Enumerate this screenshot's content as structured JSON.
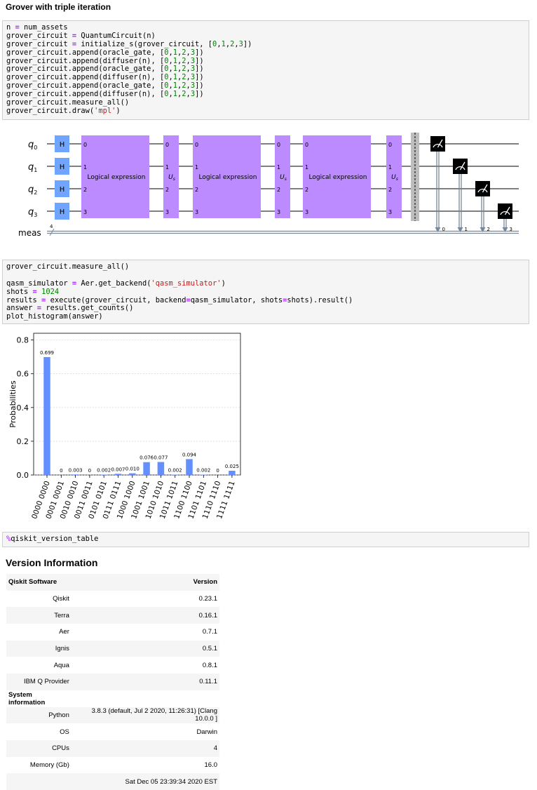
{
  "heading": "Grover with triple iteration",
  "cell1": {
    "lines": [
      [
        "n",
        " = ",
        "num_assets"
      ],
      [
        "grover_circuit",
        " = ",
        "QuantumCircuit(n)"
      ],
      [
        "grover_circuit",
        " = ",
        "initialize_s(grover_circuit, [",
        "0",
        ",",
        "1",
        ",",
        "2",
        ",",
        "3",
        "])"
      ],
      [
        "grover_circuit.append(oracle_gate, [",
        "0",
        ",",
        "1",
        ",",
        "2",
        ",",
        "3",
        "])"
      ],
      [
        "grover_circuit.append(diffuser(n), [",
        "0",
        ",",
        "1",
        ",",
        "2",
        ",",
        "3",
        "])"
      ],
      [
        "grover_circuit.append(oracle_gate, [",
        "0",
        ",",
        "1",
        ",",
        "2",
        ",",
        "3",
        "])"
      ],
      [
        "grover_circuit.append(diffuser(n), [",
        "0",
        ",",
        "1",
        ",",
        "2",
        ",",
        "3",
        "])"
      ],
      [
        "grover_circuit.append(oracle_gate, [",
        "0",
        ",",
        "1",
        ",",
        "2",
        ",",
        "3",
        "])"
      ],
      [
        "grover_circuit.append(diffuser(n), [",
        "0",
        ",",
        "1",
        ",",
        "2",
        ",",
        "3",
        "])"
      ],
      [
        "grover_circuit.measure_all()"
      ],
      [
        "grover_circuit.draw(",
        "'mpl'",
        ")"
      ]
    ]
  },
  "circuit": {
    "qubits": [
      "q",
      "q",
      "q",
      "q"
    ],
    "qubit_indices": [
      "0",
      "1",
      "2",
      "3"
    ],
    "meas_label": "meas",
    "meas_width": "4",
    "gate_h": "H",
    "oracle_label": "Logical expression",
    "diffuser_label": "U",
    "diffuser_sub": "s",
    "wire_numbers": [
      "0",
      "1",
      "2",
      "3"
    ],
    "classical_bits": [
      "0",
      "1",
      "2",
      "3"
    ],
    "colors": {
      "h_gate": "#6fa4ff",
      "oracle": "#bb8bff",
      "barrier": "#bdbdbd",
      "measure": "#000000",
      "classical": "#778899"
    }
  },
  "cell2": {
    "lines": [
      [
        "grover_circuit.measure_all()"
      ],
      [
        ""
      ],
      [
        "qasm_simulator",
        " = ",
        "Aer.get_backend(",
        "'qasm_simulator'",
        ")"
      ],
      [
        "shots",
        " = ",
        "1024"
      ],
      [
        "results",
        " = ",
        "execute(grover_circuit, backend",
        "=",
        "qasm_simulator, shots",
        "=",
        "shots).result()"
      ],
      [
        "answer",
        " = ",
        "results.get_counts()"
      ],
      [
        "plot_histogram(answer)"
      ]
    ]
  },
  "chart_data": {
    "type": "bar",
    "categories": [
      "0000 0000",
      "0001 0001",
      "0010 0010",
      "0011 0011",
      "0101 0101",
      "0111 0111",
      "1000 1000",
      "1001 1001",
      "1010 1010",
      "1011 1011",
      "1100 1100",
      "1101 1101",
      "1110 1110",
      "1111 1111"
    ],
    "values": [
      0.699,
      0,
      0.003,
      0,
      0.002,
      0.007,
      0.01,
      0.076,
      0.077,
      0.002,
      0.094,
      0.002,
      0,
      0.025
    ],
    "value_labels": [
      "0.699",
      "0",
      "0.003",
      "0",
      "0.002",
      "0.007",
      "0.010",
      "0.076",
      "0.077",
      "0.002",
      "0.094",
      "0.002",
      "0",
      "0.025"
    ],
    "ylabel": "Probabilities",
    "yticks": [
      "0.0",
      "0.2",
      "0.4",
      "0.6",
      "0.8"
    ],
    "ylim": [
      0,
      0.84
    ],
    "grid": true,
    "bar_color": "#648fff"
  },
  "cell3": {
    "magic": "%",
    "command": "qiskit_version_table"
  },
  "version": {
    "title": "Version Information",
    "header": [
      "Qiskit Software",
      "Version"
    ],
    "software": [
      [
        "Qiskit",
        "0.23.1"
      ],
      [
        "Terra",
        "0.16.1"
      ],
      [
        "Aer",
        "0.7.1"
      ],
      [
        "Ignis",
        "0.5.1"
      ],
      [
        "Aqua",
        "0.8.1"
      ],
      [
        "IBM Q Provider",
        "0.11.1"
      ]
    ],
    "system_header": "System information",
    "system": [
      [
        "Python",
        "3.8.3 (default, Jul 2 2020, 11:26:31) [Clang 10.0.0 ]"
      ],
      [
        "OS",
        "Darwin"
      ],
      [
        "CPUs",
        "4"
      ],
      [
        "Memory (Gb)",
        "16.0"
      ],
      [
        "",
        "Sat Dec 05 23:39:34 2020 EST"
      ]
    ]
  }
}
